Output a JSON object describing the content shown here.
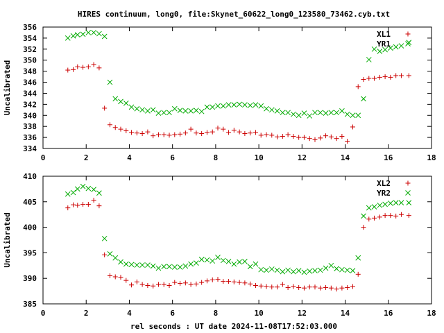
{
  "page": {
    "title": "HIRES continuum, long0, file:Skynet_60622_long0_123580_73462.cyb.txt",
    "xlabel": "rel seconds : UT date 2024-11-08T17:52:03.000"
  },
  "chart_data": [
    {
      "type": "scatter",
      "title": "HIRES continuum, long0, file:Skynet_60622_long0_123580_73462.cyb.txt",
      "xlabel": "",
      "ylabel": "Uncalibrated",
      "xlim": [
        0,
        18
      ],
      "ylim": [
        334,
        356
      ],
      "xticks": [
        0,
        2,
        4,
        6,
        8,
        10,
        12,
        14,
        16,
        18
      ],
      "yticks": [
        334,
        336,
        338,
        340,
        342,
        344,
        346,
        348,
        350,
        352,
        354,
        356
      ],
      "grid": false,
      "legend_position": "top-right",
      "series": [
        {
          "name": "XL1",
          "color": "#cc0000",
          "marker": "plus",
          "x": [
            1.15,
            1.4,
            1.6,
            1.85,
            2.1,
            2.35,
            2.6,
            2.85,
            3.1,
            3.35,
            3.6,
            3.85,
            4.1,
            4.35,
            4.6,
            4.85,
            5.1,
            5.35,
            5.6,
            5.85,
            6.1,
            6.35,
            6.6,
            6.85,
            7.1,
            7.35,
            7.6,
            7.85,
            8.1,
            8.35,
            8.6,
            8.85,
            9.1,
            9.35,
            9.6,
            9.85,
            10.1,
            10.35,
            10.6,
            10.85,
            11.1,
            11.35,
            11.6,
            11.85,
            12.1,
            12.35,
            12.6,
            12.85,
            13.1,
            13.35,
            13.6,
            13.85,
            14.1,
            14.35,
            14.6,
            14.85,
            15.1,
            15.35,
            15.6,
            15.85,
            16.1,
            16.35,
            16.6,
            16.95
          ],
          "y": [
            348.2,
            348.3,
            348.8,
            348.7,
            348.8,
            349.2,
            348.6,
            341.3,
            338.3,
            337.8,
            337.5,
            337.2,
            336.9,
            336.8,
            336.7,
            337.0,
            336.3,
            336.5,
            336.5,
            336.4,
            336.5,
            336.6,
            336.8,
            337.5,
            336.8,
            336.7,
            336.9,
            337.0,
            337.7,
            337.5,
            336.9,
            337.3,
            337.0,
            336.7,
            336.8,
            336.9,
            336.4,
            336.5,
            336.4,
            336.1,
            336.2,
            336.5,
            336.2,
            336.0,
            336.0,
            335.8,
            335.6,
            335.9,
            336.3,
            336.1,
            335.8,
            336.2,
            335.3,
            337.9,
            345.2,
            346.5,
            346.7,
            346.7,
            346.9,
            347.0,
            346.9,
            347.2,
            347.2,
            347.2
          ]
        },
        {
          "name": "YR1",
          "color": "#00aa00",
          "marker": "cross",
          "x": [
            1.15,
            1.4,
            1.6,
            1.85,
            2.1,
            2.35,
            2.6,
            2.85,
            3.1,
            3.35,
            3.6,
            3.85,
            4.1,
            4.35,
            4.6,
            4.85,
            5.1,
            5.35,
            5.6,
            5.85,
            6.1,
            6.35,
            6.6,
            6.85,
            7.1,
            7.35,
            7.6,
            7.85,
            8.1,
            8.35,
            8.6,
            8.85,
            9.1,
            9.35,
            9.6,
            9.85,
            10.1,
            10.35,
            10.6,
            10.85,
            11.1,
            11.35,
            11.6,
            11.85,
            12.1,
            12.35,
            12.6,
            12.85,
            13.1,
            13.35,
            13.6,
            13.85,
            14.1,
            14.35,
            14.6,
            14.85,
            15.1,
            15.35,
            15.6,
            15.85,
            16.1,
            16.35,
            16.6,
            16.95
          ],
          "y": [
            354.0,
            354.4,
            354.6,
            354.7,
            355.0,
            355.0,
            354.8,
            354.3,
            346.0,
            343.0,
            342.5,
            342.2,
            341.5,
            341.2,
            341.0,
            340.8,
            341.0,
            340.4,
            340.5,
            340.5,
            341.2,
            340.9,
            340.8,
            340.8,
            340.9,
            340.7,
            341.5,
            341.5,
            341.7,
            341.7,
            341.9,
            341.9,
            342.0,
            341.9,
            341.8,
            341.9,
            341.7,
            341.2,
            341.0,
            340.8,
            340.5,
            340.5,
            340.2,
            340.0,
            340.4,
            339.9,
            340.5,
            340.5,
            340.4,
            340.5,
            340.5,
            340.8,
            340.2,
            340.0,
            340.0,
            343.0,
            350.1,
            352.0,
            351.6,
            351.9,
            352.2,
            352.4,
            352.6,
            353.2
          ]
        }
      ]
    },
    {
      "type": "scatter",
      "title": "",
      "xlabel": "rel seconds : UT date 2024-11-08T17:52:03.000",
      "ylabel": "Uncalibrated",
      "xlim": [
        0,
        18
      ],
      "ylim": [
        385,
        410
      ],
      "xticks": [
        0,
        2,
        4,
        6,
        8,
        10,
        12,
        14,
        16,
        18
      ],
      "yticks": [
        385,
        390,
        395,
        400,
        405,
        410
      ],
      "grid": false,
      "legend_position": "top-right",
      "series": [
        {
          "name": "XL2",
          "color": "#cc0000",
          "marker": "plus",
          "x": [
            1.15,
            1.4,
            1.6,
            1.85,
            2.1,
            2.35,
            2.6,
            2.85,
            3.1,
            3.35,
            3.6,
            3.85,
            4.1,
            4.35,
            4.6,
            4.85,
            5.1,
            5.35,
            5.6,
            5.85,
            6.1,
            6.35,
            6.6,
            6.85,
            7.1,
            7.35,
            7.6,
            7.85,
            8.1,
            8.35,
            8.6,
            8.85,
            9.1,
            9.35,
            9.6,
            9.85,
            10.1,
            10.35,
            10.6,
            10.85,
            11.1,
            11.35,
            11.6,
            11.85,
            12.1,
            12.35,
            12.6,
            12.85,
            13.1,
            13.35,
            13.6,
            13.85,
            14.1,
            14.35,
            14.6,
            14.85,
            15.1,
            15.35,
            15.6,
            15.85,
            16.1,
            16.35,
            16.6,
            16.95
          ],
          "y": [
            403.8,
            404.4,
            404.3,
            404.5,
            404.5,
            405.3,
            404.2,
            394.6,
            390.5,
            390.3,
            390.2,
            389.6,
            388.7,
            389.3,
            388.8,
            388.6,
            388.5,
            388.8,
            388.8,
            388.6,
            389.2,
            389.0,
            389.1,
            388.8,
            388.9,
            389.2,
            389.5,
            389.7,
            389.8,
            389.4,
            389.4,
            389.3,
            389.2,
            389.1,
            388.9,
            388.6,
            388.5,
            388.4,
            388.3,
            388.3,
            388.8,
            388.2,
            388.4,
            388.2,
            388.1,
            388.3,
            388.3,
            388.1,
            388.2,
            388.1,
            387.9,
            388.1,
            388.2,
            388.4,
            390.8,
            400.0,
            401.6,
            401.8,
            402.0,
            402.3,
            402.3,
            402.2,
            402.5,
            402.3
          ]
        },
        {
          "name": "YR2",
          "color": "#00aa00",
          "marker": "cross",
          "x": [
            1.15,
            1.4,
            1.6,
            1.85,
            2.1,
            2.35,
            2.6,
            2.85,
            3.1,
            3.35,
            3.6,
            3.85,
            4.1,
            4.35,
            4.6,
            4.85,
            5.1,
            5.35,
            5.6,
            5.85,
            6.1,
            6.35,
            6.6,
            6.85,
            7.1,
            7.35,
            7.6,
            7.85,
            8.1,
            8.35,
            8.6,
            8.85,
            9.1,
            9.35,
            9.6,
            9.85,
            10.1,
            10.35,
            10.6,
            10.85,
            11.1,
            11.35,
            11.6,
            11.85,
            12.1,
            12.35,
            12.6,
            12.85,
            13.1,
            13.35,
            13.6,
            13.85,
            14.1,
            14.35,
            14.6,
            14.85,
            15.1,
            15.35,
            15.6,
            15.85,
            16.1,
            16.35,
            16.6,
            16.95
          ],
          "y": [
            406.5,
            406.8,
            407.5,
            408.0,
            407.6,
            407.4,
            406.7,
            397.8,
            394.8,
            394.0,
            393.2,
            392.8,
            392.7,
            392.6,
            392.6,
            392.6,
            392.4,
            392.0,
            392.3,
            392.3,
            392.2,
            392.2,
            392.4,
            392.8,
            393.0,
            393.7,
            393.6,
            393.4,
            394.1,
            393.5,
            393.3,
            392.8,
            393.2,
            393.3,
            392.3,
            392.8,
            391.7,
            391.6,
            391.8,
            391.6,
            391.3,
            391.6,
            391.3,
            391.5,
            391.2,
            391.4,
            391.5,
            391.6,
            392.0,
            392.5,
            391.9,
            391.7,
            391.6,
            391.5,
            394.0,
            402.2,
            403.8,
            404.0,
            404.3,
            404.5,
            404.7,
            404.8,
            404.8,
            404.8
          ]
        }
      ]
    }
  ]
}
